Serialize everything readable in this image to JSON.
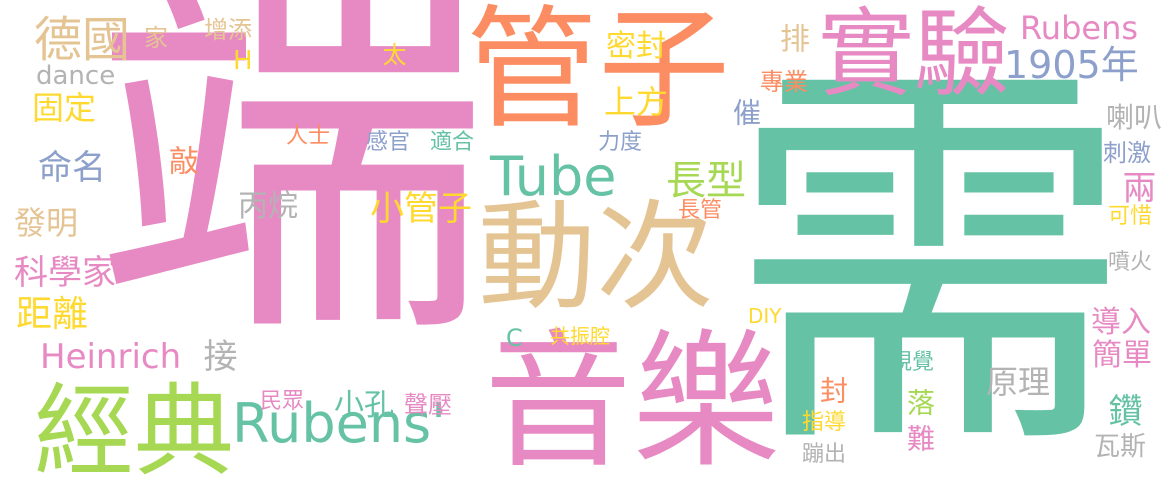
{
  "colors": {
    "pink": "#e78ac3",
    "teal": "#66c2a5",
    "orange": "#fc8d62",
    "tan": "#e5c494",
    "green": "#a6d854",
    "blue": "#8da0cb",
    "gray": "#b3b3b3",
    "yellow": "#ffd92f"
  },
  "words": [
    {
      "text": "端",
      "color": "pink"
    },
    {
      "text": "需",
      "color": "teal"
    },
    {
      "text": "管子",
      "color": "orange"
    },
    {
      "text": "音樂",
      "color": "pink"
    },
    {
      "text": "動次",
      "color": "tan"
    },
    {
      "text": "經典",
      "color": "green"
    },
    {
      "text": "實驗",
      "color": "pink"
    },
    {
      "text": "Tube",
      "color": "teal"
    },
    {
      "text": "Rubens'",
      "color": "teal"
    },
    {
      "text": "1905年",
      "color": "blue"
    },
    {
      "text": "Rubens",
      "color": "pink"
    },
    {
      "text": "德國",
      "color": "tan"
    },
    {
      "text": "家",
      "color": "tan"
    },
    {
      "text": "增添",
      "color": "tan"
    },
    {
      "text": "太",
      "color": "yellow"
    },
    {
      "text": "H",
      "color": "yellow"
    },
    {
      "text": "dance",
      "color": "gray"
    },
    {
      "text": "固定",
      "color": "yellow"
    },
    {
      "text": "密封",
      "color": "yellow"
    },
    {
      "text": "上方",
      "color": "yellow"
    },
    {
      "text": "專業",
      "color": "orange"
    },
    {
      "text": "排",
      "color": "tan"
    },
    {
      "text": "喇叭",
      "color": "gray"
    },
    {
      "text": "催",
      "color": "blue"
    },
    {
      "text": "命名",
      "color": "blue"
    },
    {
      "text": "敲",
      "color": "orange"
    },
    {
      "text": "人士",
      "color": "orange"
    },
    {
      "text": "感官",
      "color": "blue"
    },
    {
      "text": "適合",
      "color": "teal"
    },
    {
      "text": "力度",
      "color": "blue"
    },
    {
      "text": "刺激",
      "color": "blue"
    },
    {
      "text": "長型",
      "color": "green"
    },
    {
      "text": "兩",
      "color": "pink"
    },
    {
      "text": "發明",
      "color": "tan"
    },
    {
      "text": "丙烷",
      "color": "gray"
    },
    {
      "text": "小管子",
      "color": "yellow"
    },
    {
      "text": "長管",
      "color": "orange"
    },
    {
      "text": "可惜",
      "color": "yellow"
    },
    {
      "text": "科學家",
      "color": "pink"
    },
    {
      "text": "噴火",
      "color": "gray"
    },
    {
      "text": "距離",
      "color": "yellow"
    },
    {
      "text": "DIY",
      "color": "yellow"
    },
    {
      "text": "C",
      "color": "teal"
    },
    {
      "text": "共振腔",
      "color": "yellow"
    },
    {
      "text": "導入",
      "color": "pink"
    },
    {
      "text": "Heinrich",
      "color": "pink"
    },
    {
      "text": "接",
      "color": "gray"
    },
    {
      "text": "簡單",
      "color": "pink"
    },
    {
      "text": "原理",
      "color": "gray"
    },
    {
      "text": "視覺",
      "color": "teal"
    },
    {
      "text": "民眾",
      "color": "pink"
    },
    {
      "text": "小孔",
      "color": "teal"
    },
    {
      "text": "聲壓",
      "color": "pink"
    },
    {
      "text": "封",
      "color": "orange"
    },
    {
      "text": "落",
      "color": "green"
    },
    {
      "text": "鑽",
      "color": "teal"
    },
    {
      "text": "指導",
      "color": "yellow"
    },
    {
      "text": "難",
      "color": "pink"
    },
    {
      "text": "瓦斯",
      "color": "gray"
    },
    {
      "text": "蹦出",
      "color": "gray"
    }
  ]
}
